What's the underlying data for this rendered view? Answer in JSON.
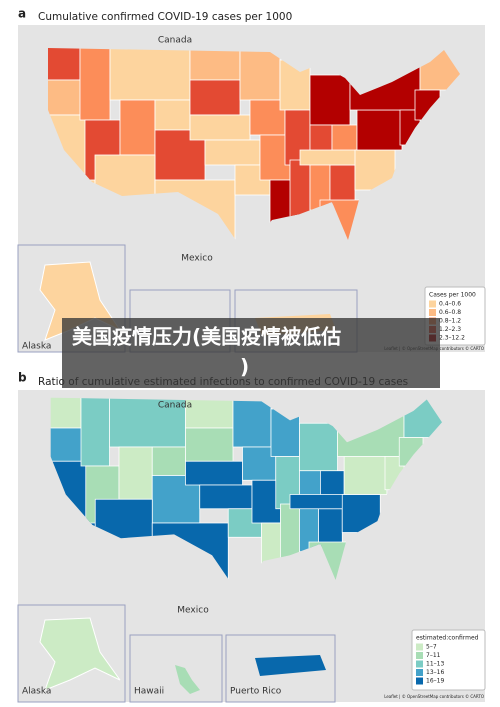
{
  "panels": [
    {
      "label": "a",
      "title": "Cumulative confirmed COVID-19 cases per 1000",
      "places": [
        "Canada",
        "Mexico"
      ],
      "insets": [
        "Alaska"
      ],
      "legend": {
        "title": "Cases per 1000",
        "items": [
          {
            "label": "0.4–0.6",
            "color": "#fdd49e"
          },
          {
            "label": "0.6–0.8",
            "color": "#fdbb84"
          },
          {
            "label": "0.8–1.2",
            "color": "#fc8d59"
          },
          {
            "label": "1.2–2.3",
            "color": "#e34a33"
          },
          {
            "label": "2.3–12.2",
            "color": "#b30000"
          }
        ]
      },
      "attribution": "Leaflet | © OpenStreetMap contributors © CARTO"
    },
    {
      "label": "b",
      "title": "Ratio of cumulative estimated infections to confirmed COVID-19 cases",
      "places": [
        "Canada",
        "Mexico"
      ],
      "insets": [
        "Alaska",
        "Hawaii",
        "Puerto Rico"
      ],
      "legend": {
        "title": "estimated:confirmed",
        "items": [
          {
            "label": "5–7",
            "color": "#ccebc5"
          },
          {
            "label": "7–11",
            "color": "#a8ddb5"
          },
          {
            "label": "11–13",
            "color": "#7bccc4"
          },
          {
            "label": "13–16",
            "color": "#43a2ca"
          },
          {
            "label": "16–19",
            "color": "#0868ac"
          }
        ]
      },
      "attribution": "Leaflet | © OpenStreetMap contributors © CARTO"
    }
  ],
  "banner": [
    "美国疫情压力(美国疫情被低估",
    ")"
  ]
}
